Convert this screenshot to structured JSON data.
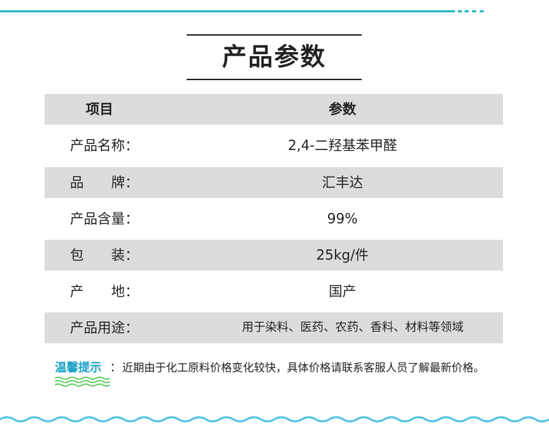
{
  "title": "产品参数",
  "header": {
    "item": "项目",
    "param": "参数"
  },
  "rows": [
    {
      "label": "产品名称：",
      "value": "2,4-二羟基苯甲醛"
    },
    {
      "label": "品　　牌：",
      "value": "汇丰达"
    },
    {
      "label": "产品含量：",
      "value": "99%"
    },
    {
      "label": "包　　装：",
      "value": "25kg/件"
    },
    {
      "label": "产　　地：",
      "value": "国产"
    },
    {
      "label": "产品用途：",
      "value": "用于染料、医药、农药、香料、材料等领域"
    }
  ],
  "tip": {
    "label": "温馨提示",
    "colon": "：",
    "text": "近期由于化工原料价格变化较快，具体价格请联系客服人员了解最新价格。"
  },
  "colors": {
    "accent": "#27b7c4",
    "tip": "#1aa0c8",
    "wave_green": "#3cc33c"
  }
}
